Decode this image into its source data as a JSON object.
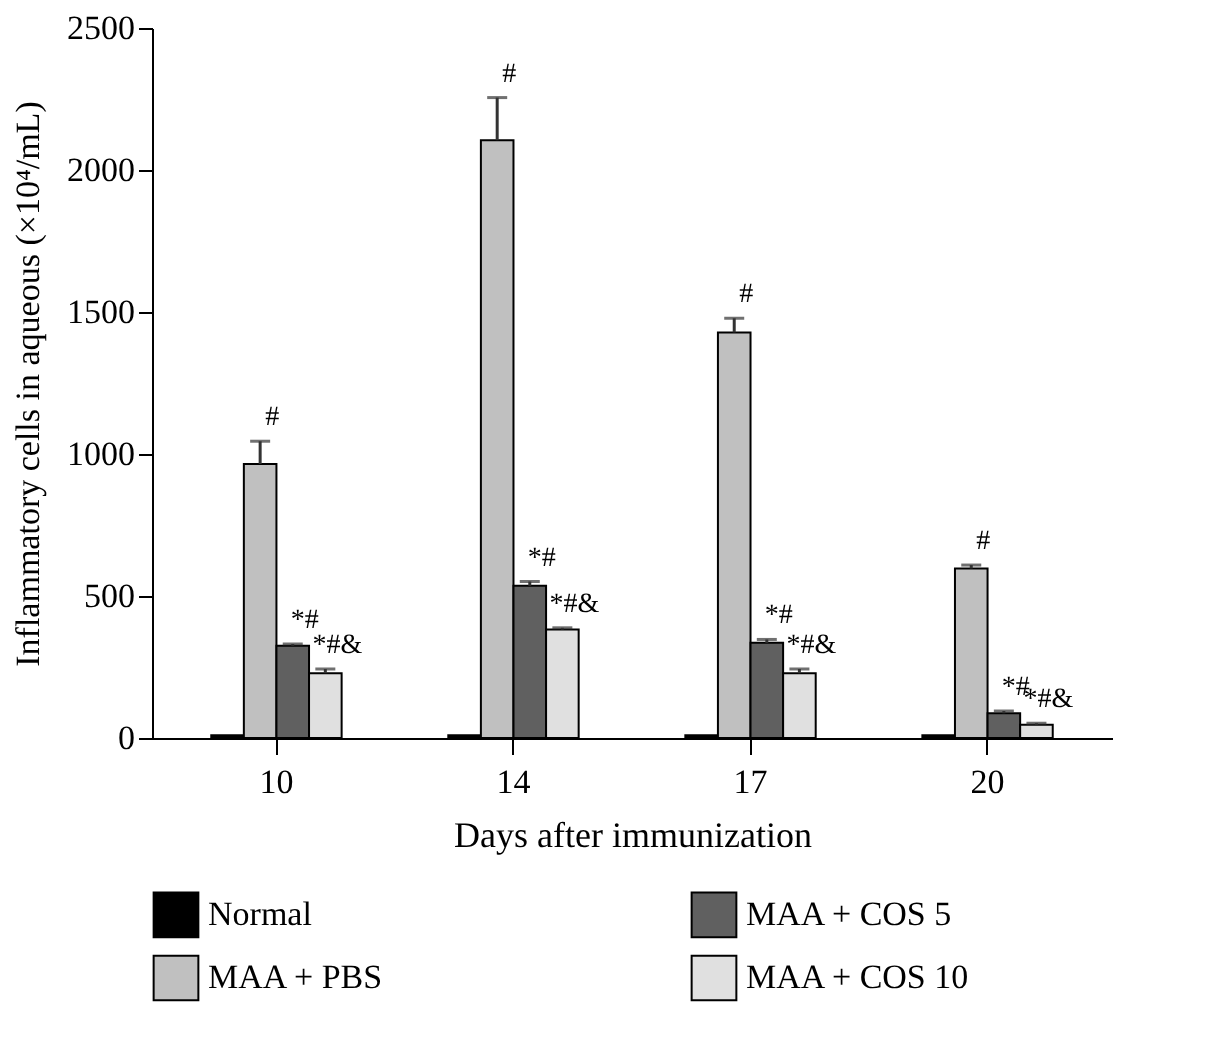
{
  "chart_data": {
    "type": "bar",
    "xlabel": "Days after immunization",
    "ylabel": "Inflammatory cells in aqueous (×10⁴/mL)",
    "categories": [
      "10",
      "14",
      "17",
      "20"
    ],
    "series": [
      {
        "name": "Normal",
        "color": "#000000",
        "values": [
          10,
          10,
          10,
          10
        ]
      },
      {
        "name": "MAA + PBS",
        "color": "#c0c0c0",
        "values": [
          965,
          2105,
          1428,
          597
        ],
        "errors": [
          80,
          150,
          50,
          12
        ]
      },
      {
        "name": "MAA + COS 5",
        "color": "#606060",
        "values": [
          325,
          536,
          335,
          87
        ],
        "errors": [
          6,
          15,
          12,
          8
        ]
      },
      {
        "name": "MAA + COS 10",
        "color": "#e0e0e0",
        "values": [
          228,
          382,
          228,
          47
        ],
        "errors": [
          15,
          6,
          15,
          5
        ]
      }
    ],
    "ylim": [
      0,
      2500
    ],
    "yticks": [
      0,
      500,
      1000,
      1500,
      2000,
      2500
    ],
    "grid": false,
    "legend": "bottom",
    "annotations": [
      {
        "text": "#",
        "x": "10",
        "y": 965
      },
      {
        "text": "*#",
        "x": "10",
        "y": 325
      },
      {
        "text": "*#&",
        "x": "10",
        "y": 228
      },
      {
        "text": "#",
        "x": "14",
        "y": 2105
      },
      {
        "text": "*#",
        "x": "14",
        "y": 536
      },
      {
        "text": "*#&",
        "x": "14",
        "y": 382
      },
      {
        "text": "#",
        "x": "17",
        "y": 1428
      },
      {
        "text": "*#",
        "x": "17",
        "y": 335
      },
      {
        "text": "*#&",
        "x": "17",
        "y": 228
      },
      {
        "text": "#",
        "x": "20",
        "y": 597
      },
      {
        "text": "*#",
        "x": "20",
        "y": 87
      },
      {
        "text": "*#&",
        "x": "20",
        "y": 47
      }
    ]
  }
}
